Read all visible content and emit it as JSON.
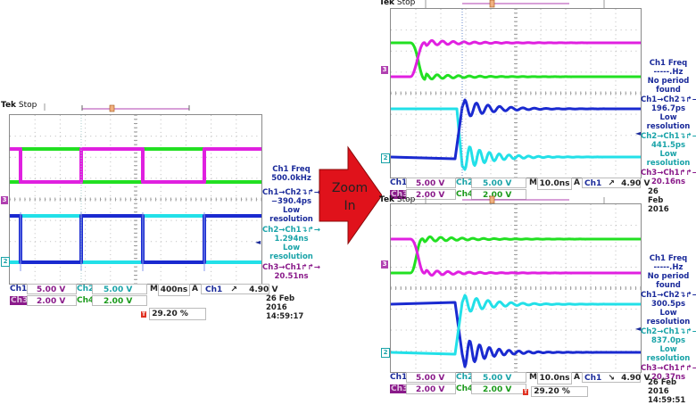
{
  "zoom_arrow": {
    "line1": "Zoom",
    "line2": "In",
    "color": "#e0121b"
  },
  "colors": {
    "ch1": "#1a2ad0",
    "ch2": "#22e0e8",
    "ch3": "#e020e0",
    "ch4": "#22e022",
    "ch1_text": "#1a2a9a",
    "ch2_text": "#19a3a8",
    "ch3_text": "#8a1a8a",
    "ch4_text": "#1a9a1a"
  },
  "scopes": [
    {
      "id": "left",
      "brand": "Tek",
      "state": "Stop",
      "trigger_marker": "T",
      "ch3_ground_marker": "3",
      "ch2_ground_marker": "2",
      "measurements": [
        {
          "l1": "Ch1 Freq",
          "l2": "500.0kHz",
          "l3": "",
          "l4": ""
        },
        {
          "l1": "Ch1→Ch2↴↱→",
          "l2": "−390.4ps",
          "l3": "Low",
          "l4": "resolution"
        },
        {
          "l1": "Ch2→Ch1↴↱→",
          "l2": "1.294ns",
          "l3": "Low",
          "l4": "resolution"
        },
        {
          "l1": "Ch3→Ch1↱↱→",
          "l2": "20.51ns",
          "l3": "",
          "l4": ""
        }
      ],
      "status": {
        "ch1_label": "Ch1",
        "ch1_scale": "5.00 V",
        "ch2_label": "Ch2",
        "ch2_scale": "5.00 V",
        "ch3_label": "Ch3",
        "ch3_scale": "2.00 V",
        "ch4_label": "Ch4",
        "ch4_scale": "2.00 V",
        "timebase_prefix": "M",
        "timebase": "400ns",
        "trigger_prefix": "A",
        "trigger_source": "Ch1",
        "trigger_slope": "↗",
        "trigger_level": "4.90 V",
        "trigger_pos": "29.20 %"
      },
      "date": "26 Feb  2016",
      "time": "14:59:17"
    },
    {
      "id": "right-top",
      "brand": "Tek",
      "state": "Stop",
      "trigger_marker": "T",
      "ch3_ground_marker": "3",
      "ch2_ground_marker": "2",
      "measurements": [
        {
          "l1": "Ch1 Freq",
          "l2": "-----.Hz",
          "l3": "No period",
          "l4": "found"
        },
        {
          "l1": "Ch1→Ch2↴↱→",
          "l2": "196.7ps",
          "l3": "Low",
          "l4": "resolution"
        },
        {
          "l1": "Ch2→Ch1↴↱→",
          "l2": "441.5ps",
          "l3": "Low",
          "l4": "resolution"
        },
        {
          "l1": "Ch3→Ch1↱↱→",
          "l2": "20.16ns",
          "l3": "",
          "l4": ""
        }
      ],
      "status": {
        "ch1_label": "Ch1",
        "ch1_scale": "5.00 V",
        "ch2_label": "Ch2",
        "ch2_scale": "5.00 V",
        "ch3_label": "Ch3",
        "ch3_scale": "2.00 V",
        "ch4_label": "Ch4",
        "ch4_scale": "2.00 V",
        "timebase_prefix": "M",
        "timebase": "10.0ns",
        "trigger_prefix": "A",
        "trigger_source": "Ch1",
        "trigger_slope": "↗",
        "trigger_level": "4.90 V",
        "trigger_pos": ""
      },
      "date": "26 Feb  2016",
      "time": ""
    },
    {
      "id": "right-bottom",
      "brand": "Tek",
      "state": "Stop",
      "trigger_marker": "T",
      "ch3_ground_marker": "3",
      "ch2_ground_marker": "2",
      "measurements": [
        {
          "l1": "Ch1 Freq",
          "l2": "-----.Hz",
          "l3": "No period",
          "l4": "found"
        },
        {
          "l1": "Ch1→Ch2↴↱→",
          "l2": "300.5ps",
          "l3": "Low",
          "l4": "resolution"
        },
        {
          "l1": "Ch2→Ch1↴↱→",
          "l2": "837.0ps",
          "l3": "Low",
          "l4": "resolution"
        },
        {
          "l1": "Ch3→Ch1↱↱→",
          "l2": "20.37ns",
          "l3": "",
          "l4": ""
        }
      ],
      "status": {
        "ch1_label": "Ch1",
        "ch1_scale": "5.00 V",
        "ch2_label": "Ch2",
        "ch2_scale": "5.00 V",
        "ch3_label": "Ch3",
        "ch3_scale": "2.00 V",
        "ch4_label": "Ch4",
        "ch4_scale": "2.00 V",
        "timebase_prefix": "M",
        "timebase": "10.0ns",
        "trigger_prefix": "A",
        "trigger_source": "Ch1",
        "trigger_slope": "↘",
        "trigger_level": "4.90 V",
        "trigger_pos": "29.20 %"
      },
      "date": "26 Feb  2016",
      "time": "14:59:51"
    }
  ]
}
